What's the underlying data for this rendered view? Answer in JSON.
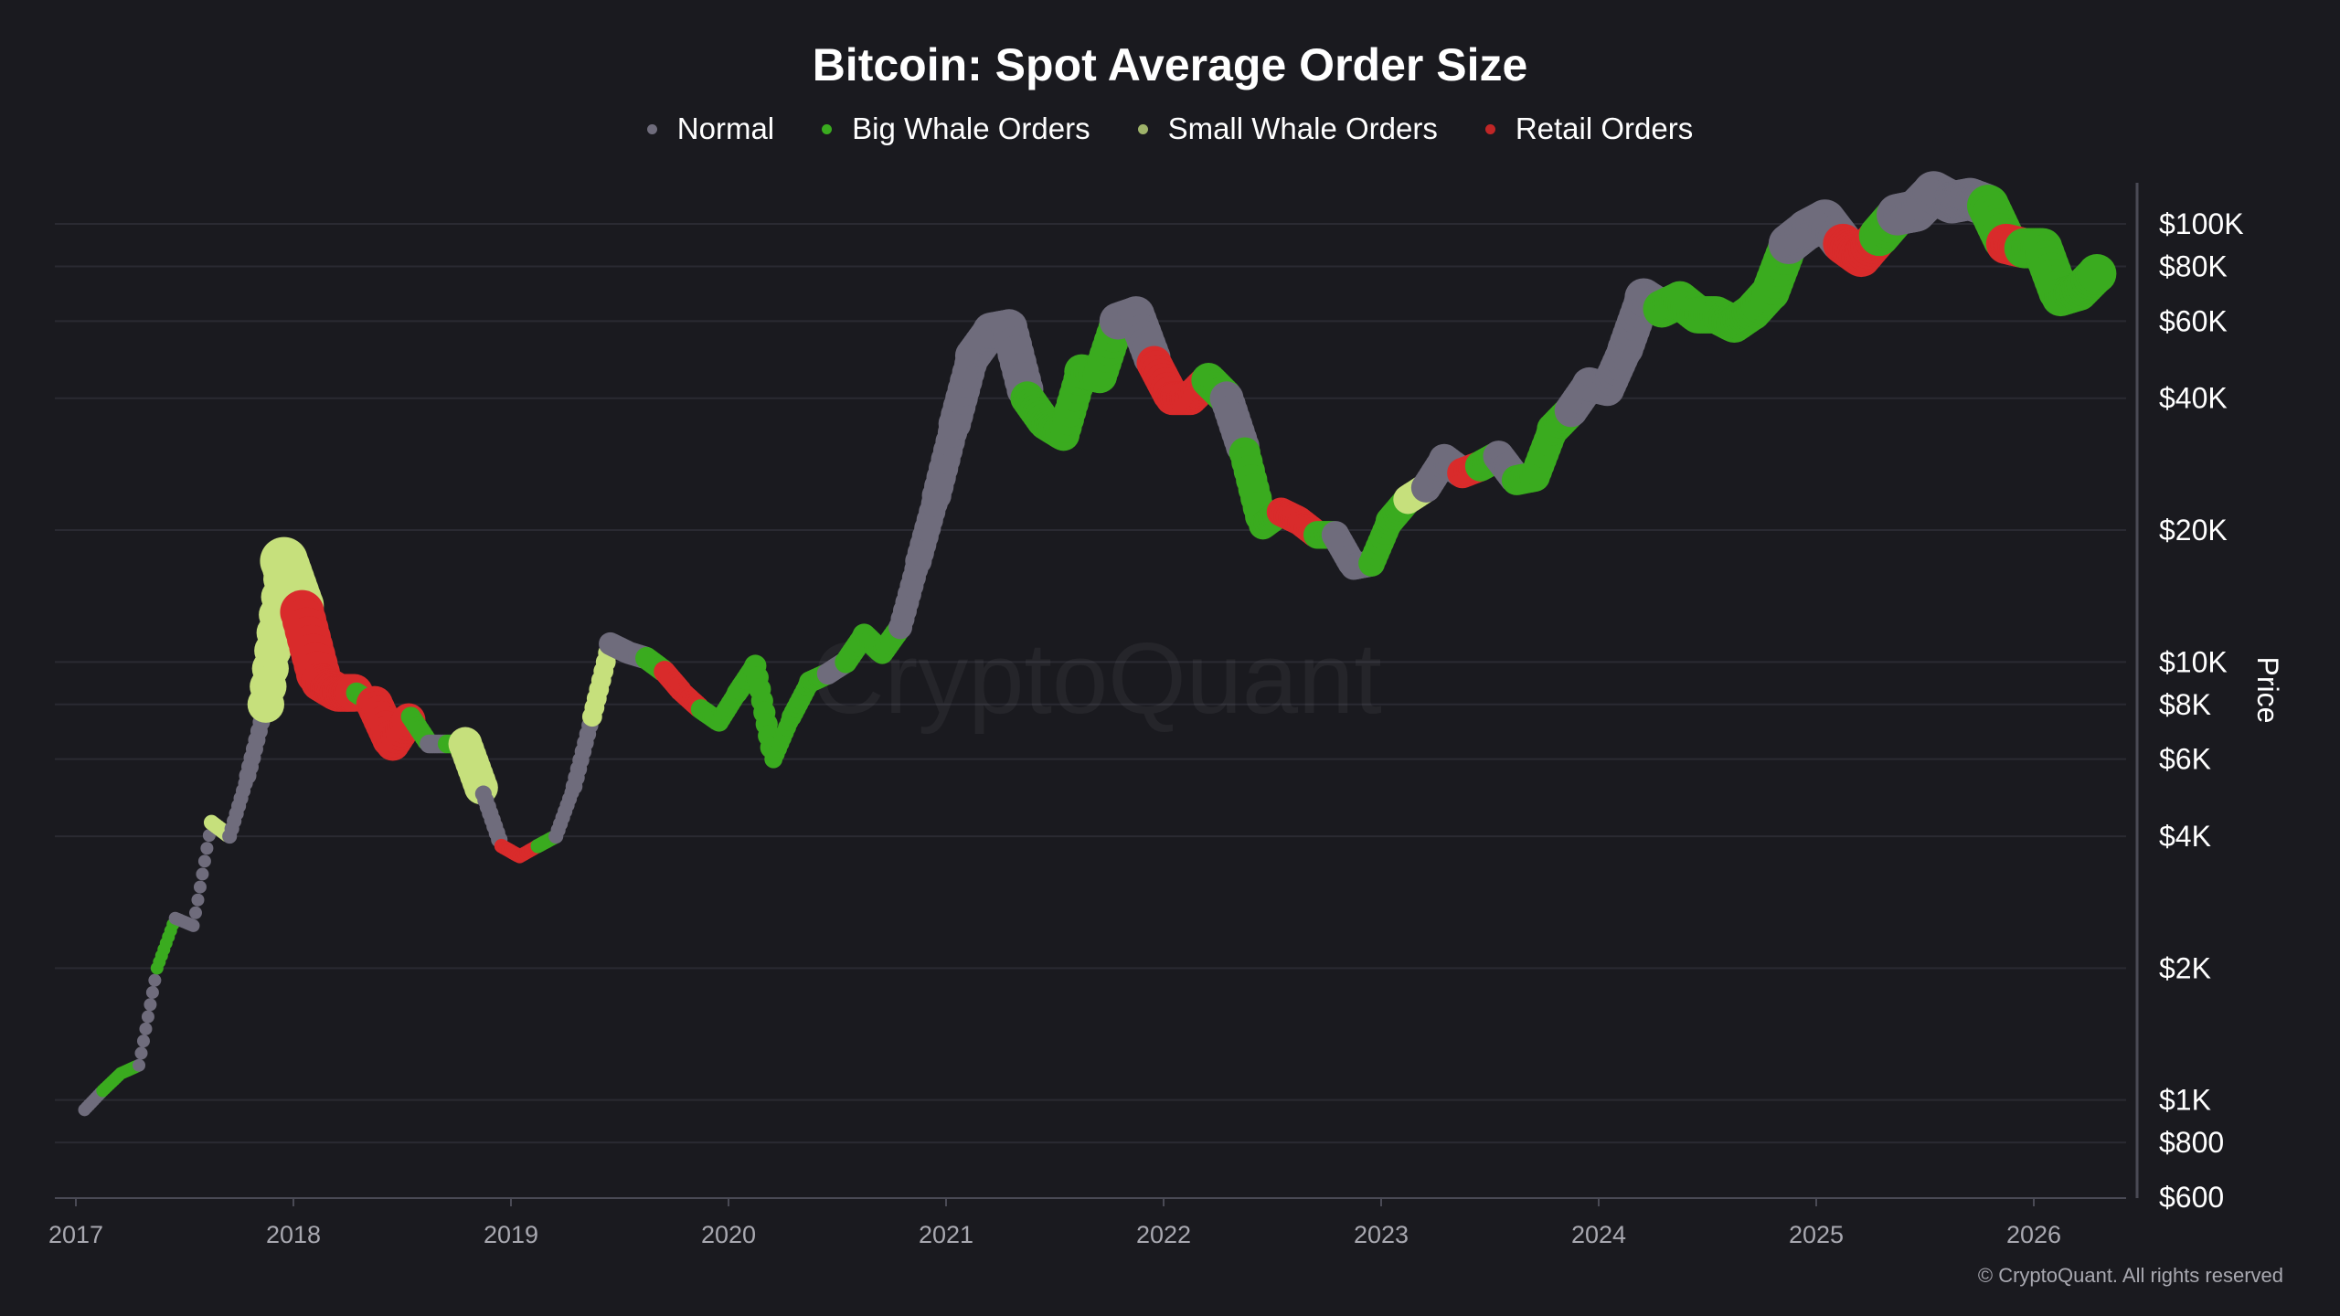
{
  "chart_data": {
    "type": "scatter",
    "title": "Bitcoin: Spot Average Order Size",
    "ylabel": "Price",
    "xlabel": "",
    "yscale": "log",
    "ylim": [
      600,
      120000
    ],
    "xlim": [
      "2016-12-20",
      "2026-05-15"
    ],
    "grid": "horizontal",
    "legend_position": "top",
    "y_ticks": [
      {
        "value": 100000,
        "label": "$100K"
      },
      {
        "value": 80000,
        "label": "$80K"
      },
      {
        "value": 60000,
        "label": "$60K"
      },
      {
        "value": 40000,
        "label": "$40K"
      },
      {
        "value": 20000,
        "label": "$20K"
      },
      {
        "value": 10000,
        "label": "$10K"
      },
      {
        "value": 8000,
        "label": "$8K"
      },
      {
        "value": 6000,
        "label": "$6K"
      },
      {
        "value": 4000,
        "label": "$4K"
      },
      {
        "value": 2000,
        "label": "$2K"
      },
      {
        "value": 1000,
        "label": "$1K"
      },
      {
        "value": 800,
        "label": "$800"
      },
      {
        "value": 600,
        "label": "$600"
      }
    ],
    "x_ticks": [
      "2017",
      "2018",
      "2019",
      "2020",
      "2021",
      "2022",
      "2023",
      "2024",
      "2025",
      "2026"
    ],
    "series": [
      {
        "key": "N",
        "name": "Normal",
        "color": "#6f6c7c"
      },
      {
        "key": "B",
        "name": "Big Whale Orders",
        "color": "#3aab1f"
      },
      {
        "key": "S",
        "name": "Small Whale Orders",
        "color": "#c6e07c"
      },
      {
        "key": "R",
        "name": "Retail Orders",
        "color": "#d92b2b"
      }
    ],
    "points": [
      [
        "2017-01",
        950,
        "N"
      ],
      [
        "2017-02",
        1050,
        "B"
      ],
      [
        "2017-03",
        1150,
        "B"
      ],
      [
        "2017-04",
        1200,
        "N"
      ],
      [
        "2017-05",
        2000,
        "B"
      ],
      [
        "2017-06",
        2600,
        "N"
      ],
      [
        "2017-07",
        2500,
        "N"
      ],
      [
        "2017-08",
        4300,
        "S"
      ],
      [
        "2017-09",
        4000,
        "N"
      ],
      [
        "2017-10",
        5500,
        "N"
      ],
      [
        "2017-11",
        8000,
        "S"
      ],
      [
        "2017-12",
        17000,
        "S"
      ],
      [
        "2018-01",
        13000,
        "R"
      ],
      [
        "2018-02",
        9000,
        "R"
      ],
      [
        "2018-03",
        8500,
        "R"
      ],
      [
        "2018-04",
        8500,
        "B"
      ],
      [
        "2018-05",
        8000,
        "R"
      ],
      [
        "2018-06",
        6500,
        "R"
      ],
      [
        "2018-07",
        7500,
        "B"
      ],
      [
        "2018-08",
        6500,
        "N"
      ],
      [
        "2018-09",
        6500,
        "B"
      ],
      [
        "2018-10",
        6500,
        "S"
      ],
      [
        "2018-11",
        5000,
        "N"
      ],
      [
        "2018-12",
        3800,
        "R"
      ],
      [
        "2019-01",
        3600,
        "R"
      ],
      [
        "2019-02",
        3800,
        "B"
      ],
      [
        "2019-03",
        4000,
        "N"
      ],
      [
        "2019-04",
        5200,
        "N"
      ],
      [
        "2019-05",
        7500,
        "S"
      ],
      [
        "2019-06",
        11000,
        "N"
      ],
      [
        "2019-07",
        10500,
        "N"
      ],
      [
        "2019-08",
        10200,
        "B"
      ],
      [
        "2019-09",
        9500,
        "R"
      ],
      [
        "2019-10",
        8500,
        "R"
      ],
      [
        "2019-11",
        7800,
        "B"
      ],
      [
        "2019-12",
        7300,
        "B"
      ],
      [
        "2020-01",
        8500,
        "B"
      ],
      [
        "2020-02",
        9800,
        "B"
      ],
      [
        "2020-03",
        6000,
        "B"
      ],
      [
        "2020-04",
        7500,
        "B"
      ],
      [
        "2020-05",
        9000,
        "B"
      ],
      [
        "2020-06",
        9400,
        "N"
      ],
      [
        "2020-07",
        10000,
        "B"
      ],
      [
        "2020-08",
        11500,
        "B"
      ],
      [
        "2020-09",
        10500,
        "B"
      ],
      [
        "2020-10",
        12000,
        "N"
      ],
      [
        "2020-11",
        17000,
        "N"
      ],
      [
        "2020-12",
        24000,
        "N"
      ],
      [
        "2021-01",
        35000,
        "N"
      ],
      [
        "2021-02",
        50000,
        "N"
      ],
      [
        "2021-03",
        57000,
        "N"
      ],
      [
        "2021-04",
        58000,
        "N"
      ],
      [
        "2021-05",
        40000,
        "B"
      ],
      [
        "2021-06",
        35000,
        "B"
      ],
      [
        "2021-07",
        33000,
        "B"
      ],
      [
        "2021-08",
        46000,
        "B"
      ],
      [
        "2021-09",
        45000,
        "B"
      ],
      [
        "2021-10",
        60000,
        "N"
      ],
      [
        "2021-11",
        62000,
        "N"
      ],
      [
        "2021-12",
        48000,
        "R"
      ],
      [
        "2022-01",
        40000,
        "R"
      ],
      [
        "2022-02",
        40000,
        "R"
      ],
      [
        "2022-03",
        44000,
        "B"
      ],
      [
        "2022-04",
        40000,
        "N"
      ],
      [
        "2022-05",
        30000,
        "B"
      ],
      [
        "2022-06",
        20500,
        "B"
      ],
      [
        "2022-07",
        22000,
        "R"
      ],
      [
        "2022-08",
        21000,
        "R"
      ],
      [
        "2022-09",
        19500,
        "B"
      ],
      [
        "2022-10",
        19500,
        "N"
      ],
      [
        "2022-11",
        16500,
        "N"
      ],
      [
        "2022-12",
        16800,
        "B"
      ],
      [
        "2023-01",
        21000,
        "B"
      ],
      [
        "2023-02",
        23500,
        "S"
      ],
      [
        "2023-03",
        25000,
        "N"
      ],
      [
        "2023-04",
        29000,
        "N"
      ],
      [
        "2023-05",
        27000,
        "R"
      ],
      [
        "2023-06",
        28000,
        "B"
      ],
      [
        "2023-07",
        29500,
        "N"
      ],
      [
        "2023-08",
        26000,
        "B"
      ],
      [
        "2023-09",
        26500,
        "B"
      ],
      [
        "2023-10",
        34000,
        "B"
      ],
      [
        "2023-11",
        37500,
        "N"
      ],
      [
        "2023-12",
        43000,
        "N"
      ],
      [
        "2024-01",
        42000,
        "N"
      ],
      [
        "2024-02",
        52000,
        "N"
      ],
      [
        "2024-03",
        68000,
        "N"
      ],
      [
        "2024-04",
        64000,
        "B"
      ],
      [
        "2024-05",
        67000,
        "B"
      ],
      [
        "2024-06",
        62000,
        "B"
      ],
      [
        "2024-07",
        62000,
        "B"
      ],
      [
        "2024-08",
        59000,
        "B"
      ],
      [
        "2024-09",
        63000,
        "B"
      ],
      [
        "2024-10",
        70000,
        "B"
      ],
      [
        "2024-11",
        90000,
        "N"
      ],
      [
        "2024-12",
        97000,
        "N"
      ],
      [
        "2025-01",
        102000,
        "N"
      ],
      [
        "2025-02",
        90000,
        "R"
      ],
      [
        "2025-03",
        84000,
        "R"
      ],
      [
        "2025-04",
        94000,
        "B"
      ],
      [
        "2025-05",
        105000,
        "N"
      ],
      [
        "2025-06",
        107000,
        "N"
      ],
      [
        "2025-07",
        118000,
        "N"
      ],
      [
        "2025-08",
        112000,
        "N"
      ],
      [
        "2025-09",
        114000,
        "N"
      ],
      [
        "2025-10",
        110000,
        "B"
      ],
      [
        "2025-11",
        90000,
        "R"
      ],
      [
        "2025-12",
        88000,
        "B"
      ],
      [
        "2026-01",
        88000,
        "B"
      ],
      [
        "2026-02",
        68000,
        "B"
      ],
      [
        "2026-03",
        70000,
        "B"
      ],
      [
        "2026-04",
        77000,
        "B"
      ]
    ]
  },
  "watermark": "CryptoQuant",
  "copyright": "© CryptoQuant. All rights reserved"
}
